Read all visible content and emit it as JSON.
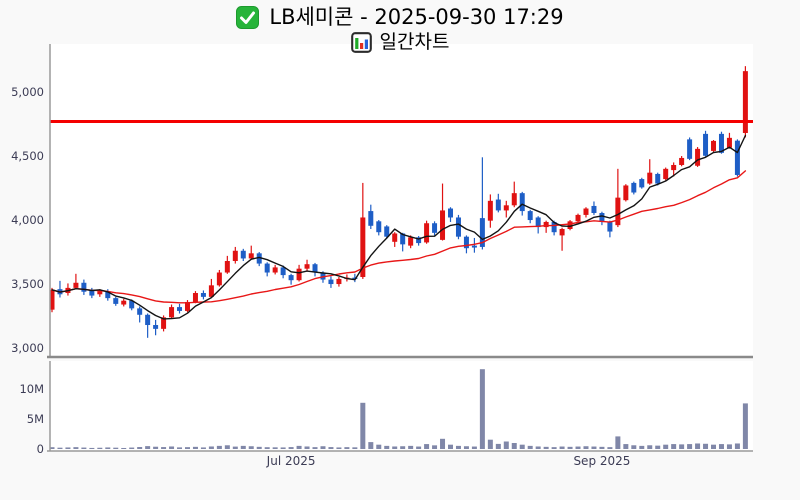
{
  "header": {
    "title": "LB세미콘 - 2025-09-30 17:29",
    "subtitle": "일간차트",
    "title_icon": "white-check-mark",
    "subtitle_icon": "bar-chart"
  },
  "colors": {
    "up_candle": "#e01212",
    "down_candle": "#1e5ec6",
    "ma_fast": "#141414",
    "ma_slow": "#e81717",
    "alert_line": "#f40000",
    "volume_bar": "#8087a8",
    "axis_text": "#3c3c55",
    "spine": "#9a9a9a",
    "spine_heavy": "#8a8a8a",
    "pane_bg": "#ffffff",
    "page_bg": "#f9f9f9",
    "check_green": "#27b43a",
    "icon_bar_green": "#1faa28",
    "icon_bar_red": "#e03020",
    "icon_bar_blue": "#2563d8"
  },
  "chart_data": {
    "type": "candlestick",
    "title": "LB세미콘 - 2025-09-30 17:29",
    "subtitle": "일간차트",
    "grid": false,
    "legend": false,
    "price_axis": {
      "ticks": [
        3000,
        3500,
        4000,
        4500,
        5000
      ],
      "tick_labels": [
        "3,000",
        "3,500",
        "4,000",
        "4,500",
        "5,000"
      ],
      "ylim": [
        2938,
        5375
      ]
    },
    "volume_axis": {
      "ticks_millions": [
        0,
        5,
        10
      ],
      "tick_labels": [
        "0",
        "5M",
        "10M"
      ],
      "ylim_millions": [
        0,
        14.6
      ]
    },
    "x_labels": [
      {
        "text": "Jul 2025",
        "index": 30
      },
      {
        "text": "Sep 2025",
        "index": 69
      }
    ],
    "alert_line_price": 4770,
    "ma_windows": {
      "fast": 5,
      "slow": 20
    },
    "candles_ohlc": [
      [
        3300,
        3470,
        3280,
        3455
      ],
      [
        3460,
        3525,
        3395,
        3420
      ],
      [
        3430,
        3505,
        3410,
        3470
      ],
      [
        3470,
        3580,
        3460,
        3510
      ],
      [
        3510,
        3535,
        3415,
        3440
      ],
      [
        3450,
        3470,
        3390,
        3410
      ],
      [
        3420,
        3460,
        3400,
        3445
      ],
      [
        3445,
        3460,
        3370,
        3390
      ],
      [
        3390,
        3400,
        3330,
        3345
      ],
      [
        3340,
        3385,
        3325,
        3370
      ],
      [
        3370,
        3380,
        3295,
        3310
      ],
      [
        3310,
        3325,
        3200,
        3260
      ],
      [
        3260,
        3270,
        3080,
        3180
      ],
      [
        3180,
        3220,
        3100,
        3150
      ],
      [
        3150,
        3255,
        3130,
        3240
      ],
      [
        3240,
        3340,
        3230,
        3320
      ],
      [
        3320,
        3345,
        3270,
        3290
      ],
      [
        3290,
        3375,
        3280,
        3360
      ],
      [
        3360,
        3445,
        3350,
        3430
      ],
      [
        3430,
        3450,
        3380,
        3400
      ],
      [
        3400,
        3540,
        3395,
        3490
      ],
      [
        3490,
        3610,
        3480,
        3590
      ],
      [
        3590,
        3720,
        3580,
        3680
      ],
      [
        3680,
        3790,
        3660,
        3760
      ],
      [
        3760,
        3775,
        3680,
        3700
      ],
      [
        3700,
        3800,
        3690,
        3740
      ],
      [
        3740,
        3750,
        3640,
        3660
      ],
      [
        3660,
        3670,
        3560,
        3590
      ],
      [
        3590,
        3650,
        3575,
        3630
      ],
      [
        3630,
        3645,
        3545,
        3570
      ],
      [
        3570,
        3580,
        3495,
        3530
      ],
      [
        3530,
        3650,
        3520,
        3620
      ],
      [
        3620,
        3690,
        3600,
        3655
      ],
      [
        3655,
        3665,
        3560,
        3590
      ],
      [
        3590,
        3600,
        3510,
        3535
      ],
      [
        3535,
        3560,
        3470,
        3500
      ],
      [
        3500,
        3555,
        3480,
        3540
      ],
      [
        3540,
        3575,
        3520,
        3550
      ],
      [
        3550,
        3580,
        3515,
        3545
      ],
      [
        3555,
        4290,
        3540,
        4020
      ],
      [
        4070,
        4120,
        3930,
        3955
      ],
      [
        3990,
        4000,
        3880,
        3905
      ],
      [
        3950,
        3960,
        3855,
        3870
      ],
      [
        3830,
        3905,
        3790,
        3895
      ],
      [
        3895,
        3900,
        3755,
        3810
      ],
      [
        3800,
        3880,
        3780,
        3865
      ],
      [
        3865,
        3875,
        3800,
        3820
      ],
      [
        3825,
        3995,
        3815,
        3975
      ],
      [
        3975,
        3990,
        3880,
        3900
      ],
      [
        3845,
        4285,
        3840,
        4075
      ],
      [
        4090,
        4100,
        3985,
        4020
      ],
      [
        4020,
        4040,
        3850,
        3870
      ],
      [
        3870,
        3880,
        3740,
        3780
      ],
      [
        3800,
        3860,
        3745,
        3785
      ],
      [
        4015,
        4490,
        3770,
        3790
      ],
      [
        3995,
        4200,
        3940,
        4150
      ],
      [
        4160,
        4205,
        4060,
        4075
      ],
      [
        4075,
        4150,
        4020,
        4115
      ],
      [
        4115,
        4300,
        4100,
        4210
      ],
      [
        4210,
        4220,
        4035,
        4070
      ],
      [
        4070,
        4080,
        3975,
        4000
      ],
      [
        4020,
        4030,
        3895,
        3945
      ],
      [
        3945,
        3995,
        3900,
        3985
      ],
      [
        3985,
        3995,
        3880,
        3905
      ],
      [
        3880,
        3940,
        3760,
        3930
      ],
      [
        3930,
        4000,
        3920,
        3990
      ],
      [
        3990,
        4050,
        3975,
        4040
      ],
      [
        4040,
        4100,
        4020,
        4090
      ],
      [
        4110,
        4145,
        4040,
        4055
      ],
      [
        4055,
        4065,
        3960,
        3985
      ],
      [
        3985,
        3995,
        3865,
        3910
      ],
      [
        3960,
        4400,
        3945,
        4175
      ],
      [
        4155,
        4280,
        4145,
        4270
      ],
      [
        4290,
        4300,
        4200,
        4215
      ],
      [
        4320,
        4330,
        4245,
        4255
      ],
      [
        4285,
        4475,
        4275,
        4370
      ],
      [
        4360,
        4370,
        4270,
        4285
      ],
      [
        4320,
        4410,
        4310,
        4400
      ],
      [
        4390,
        4450,
        4340,
        4430
      ],
      [
        4430,
        4500,
        4420,
        4485
      ],
      [
        4630,
        4645,
        4468,
        4478
      ],
      [
        4424,
        4570,
        4415,
        4556
      ],
      [
        4673,
        4697,
        4495,
        4502
      ],
      [
        4540,
        4625,
        4532,
        4618
      ],
      [
        4673,
        4690,
        4518,
        4525
      ],
      [
        4565,
        4681,
        4558,
        4642
      ],
      [
        4620,
        4630,
        4340,
        4352
      ],
      [
        4680,
        5202,
        4645,
        5163
      ]
    ],
    "volumes_millions": [
      0.3,
      0.22,
      0.26,
      0.31,
      0.24,
      0.18,
      0.21,
      0.26,
      0.22,
      0.17,
      0.24,
      0.33,
      0.48,
      0.38,
      0.32,
      0.42,
      0.27,
      0.31,
      0.36,
      0.26,
      0.42,
      0.52,
      0.62,
      0.4,
      0.52,
      0.46,
      0.36,
      0.3,
      0.28,
      0.26,
      0.32,
      0.52,
      0.42,
      0.31,
      0.46,
      0.32,
      0.26,
      0.31,
      0.28,
      7.7,
      1.15,
      0.72,
      0.52,
      0.42,
      0.46,
      0.52,
      0.41,
      0.82,
      0.61,
      1.7,
      0.72,
      0.52,
      0.46,
      0.41,
      13.3,
      1.55,
      0.85,
      1.25,
      1.0,
      0.72,
      0.52,
      0.42,
      0.36,
      0.31,
      0.41,
      0.36,
      0.41,
      0.46,
      0.41,
      0.36,
      0.31,
      2.1,
      0.82,
      0.62,
      0.52,
      0.62,
      0.56,
      0.72,
      0.82,
      0.77,
      0.82,
      0.92,
      0.87,
      0.72,
      0.82,
      0.77,
      0.92,
      7.6
    ]
  }
}
